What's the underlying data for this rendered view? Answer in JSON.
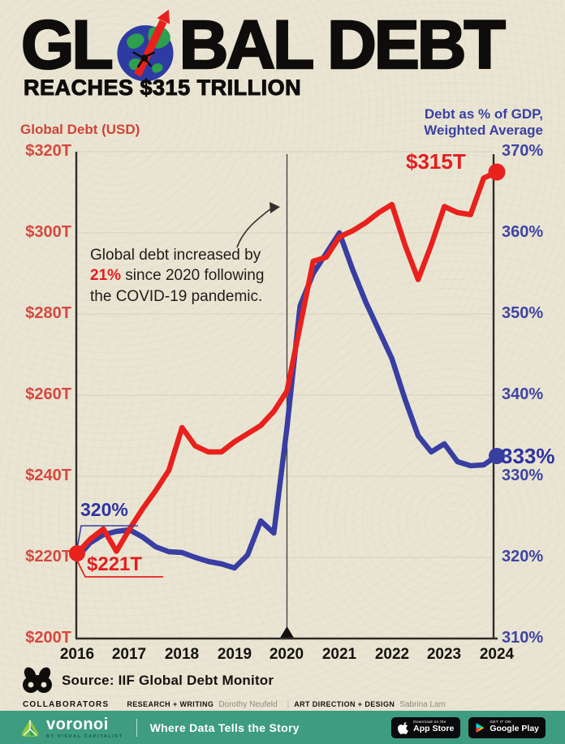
{
  "header": {
    "title_pre": "GL",
    "title_post": "BAL DEBT",
    "subtitle": "REACHES $315 TRILLION"
  },
  "axes": {
    "left_label": "Global Debt (USD)",
    "right_label_line1": "Debt as % of GDP,",
    "right_label_line2": "Weighted Average",
    "left_ticks": [
      "$320T",
      "$300T",
      "$280T",
      "$260T",
      "$240T",
      "$220T",
      "$200T"
    ],
    "right_ticks": [
      "370%",
      "360%",
      "350%",
      "340%",
      "330%",
      "320%",
      "310%"
    ],
    "x_ticks": [
      "2016",
      "2017",
      "2018",
      "2019",
      "2020",
      "2021",
      "2022",
      "2023",
      "2024"
    ]
  },
  "labels": {
    "debt_end": "$315T",
    "pct_end": "333%",
    "pct_start": "320%",
    "debt_start": "$221T"
  },
  "annotation": {
    "part1": "Global debt increased by",
    "highlight": "21%",
    "part2": " since 2020 following",
    "part3": "the COVID-19 pandemic."
  },
  "chart_data": {
    "type": "line",
    "title": "Global debt reaches $315 trillion",
    "x_unit": "quarterly",
    "x_start": 2016.0,
    "x_end": 2024.0,
    "x_tick_years": [
      2016,
      2017,
      2018,
      2019,
      2020,
      2021,
      2022,
      2023,
      2024
    ],
    "event_line_x": 2020.0,
    "left_axis": {
      "label": "Global Debt (USD trillions)",
      "min": 200,
      "max": 320,
      "ticks": [
        320,
        300,
        280,
        260,
        240,
        220,
        200
      ]
    },
    "right_axis": {
      "label": "Debt as % of GDP, weighted average",
      "min": 310,
      "max": 370,
      "ticks": [
        370,
        360,
        350,
        340,
        330,
        320,
        310
      ]
    },
    "grid": true,
    "series": [
      {
        "name": "Global Debt (USD)",
        "axis": "left",
        "color": "#e8211d",
        "start_label": "$221T",
        "end_label": "$315T",
        "values": [
          221,
          224.5,
          227,
          221.5,
          227,
          232,
          236.5,
          241.5,
          252,
          247.5,
          246,
          246,
          248.5,
          250.5,
          252.5,
          256,
          261,
          277,
          293,
          294,
          299,
          300.5,
          302.5,
          305,
          307,
          297,
          288.5,
          297,
          306.5,
          305,
          304.5,
          313.5,
          315
        ]
      },
      {
        "name": "Debt as % of GDP, Weighted Average",
        "axis": "right",
        "color": "#383ea2",
        "start_label": "320%",
        "end_label": "333%",
        "values": [
          320,
          321.8,
          322.8,
          323.2,
          323.4,
          322.5,
          321.3,
          320.7,
          320.6,
          320,
          319.5,
          319.2,
          318.7,
          320.3,
          324.5,
          323,
          336,
          351,
          355,
          357.5,
          360,
          355.5,
          351.5,
          348,
          344.5,
          339.5,
          335,
          333,
          334,
          331.8,
          331.3,
          331.4,
          332.5
        ]
      }
    ]
  },
  "source": {
    "text": "Source: IIF Global Debt Monitor"
  },
  "collaborators": {
    "title": "COLLABORATORS",
    "role1": "RESEARCH + WRITING",
    "name1": "Dorothy Neufeld",
    "separator": "|",
    "role2": "ART DIRECTION + DESIGN",
    "name2": "Sabrina Lam"
  },
  "footer": {
    "brand": "voronoi",
    "brand_sub": "BY VISUAL CAPITALIST",
    "tagline": "Where Data Tells the Story",
    "appstore_line1": "Download on the",
    "appstore_line2": "App Store",
    "googleplay_line1": "GET IT ON",
    "googleplay_line2": "Google Play"
  },
  "colors": {
    "background": "#eae5d3",
    "debt_line": "#e8211d",
    "gdp_line": "#383ea2",
    "left_ticks": "#d5483f",
    "right_ticks": "#3f45a4",
    "footer_bar": "#3e9c81",
    "axis": "#2e2c28",
    "grid": "#d9d3c0"
  }
}
